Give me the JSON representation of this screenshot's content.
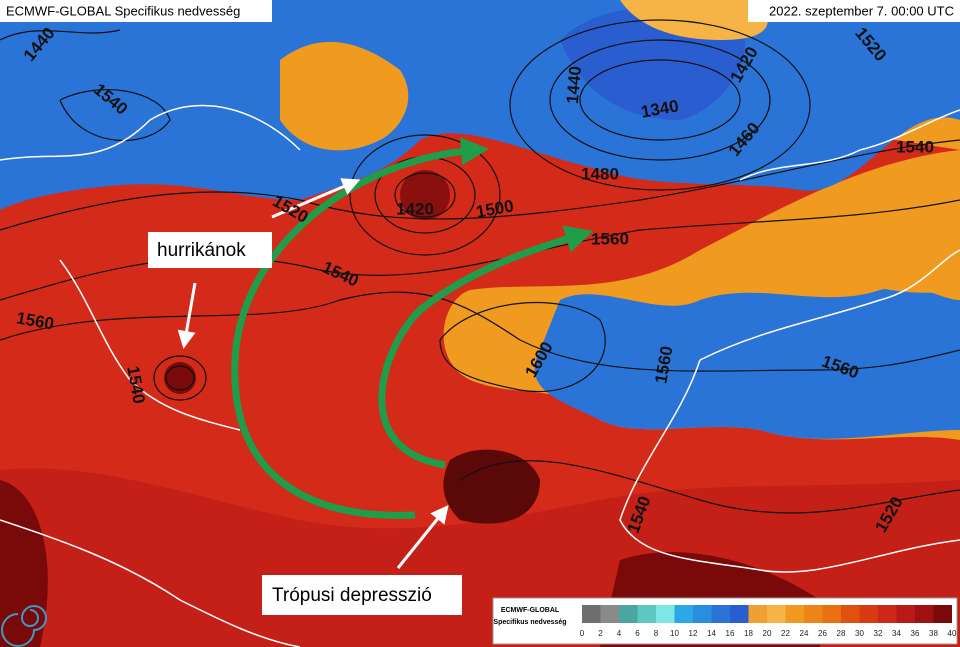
{
  "header": {
    "title": "ECMWF-GLOBAL Specifikus nedvesség",
    "date": "2022. szeptember 7. 00:00 UTC"
  },
  "annotations": [
    "hurrikánok",
    "Trópusi depresszió"
  ],
  "contour_labels": [
    1440,
    1540,
    1520,
    1540,
    1420,
    1500,
    1560,
    1480,
    1440,
    1340,
    1420,
    1460,
    1520,
    1540,
    1600,
    1560,
    1560,
    1560,
    1540,
    1520,
    1540
  ],
  "legend": {
    "title": "ECMWF-GLOBAL",
    "subtitle": "Specifikus nedvesség",
    "ticks": [
      0,
      2,
      4,
      6,
      8,
      10,
      12,
      14,
      16,
      18,
      20,
      22,
      24,
      26,
      28,
      30,
      32,
      34,
      36,
      38,
      40
    ],
    "colors": [
      "#6e6e6e",
      "#8a8a8a",
      "#4aa6a0",
      "#5cc8c0",
      "#7fe6e6",
      "#2aa8e8",
      "#2a8ee0",
      "#2a74d8",
      "#2a5ed0",
      "#f0a030",
      "#f5b445",
      "#f09a20",
      "#ec8418",
      "#e87010",
      "#e05010",
      "#d83a14",
      "#cc2818",
      "#b81818",
      "#a01010",
      "#7a0a0a"
    ]
  }
}
